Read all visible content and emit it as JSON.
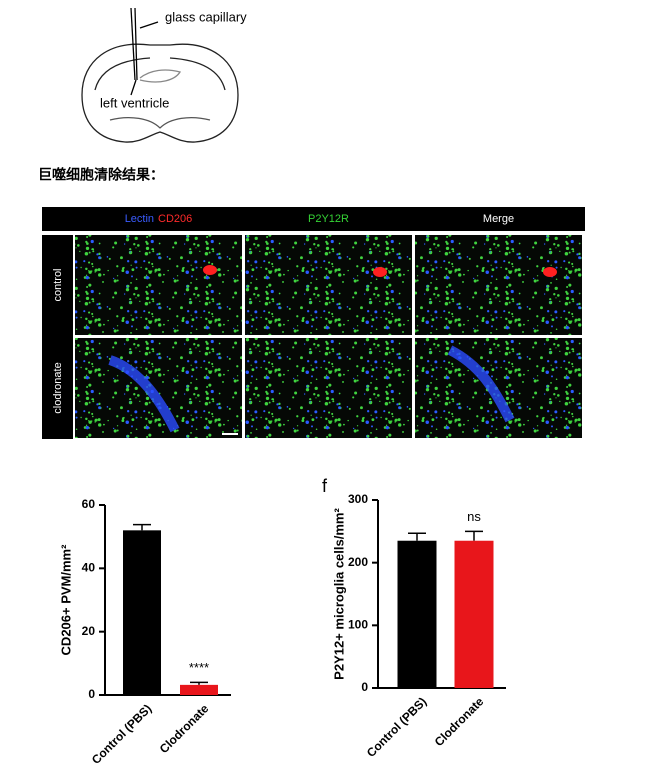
{
  "diagram_labels": {
    "capillary": "glass capillary",
    "ventricle": "left ventricle"
  },
  "heading": "巨噬细胞清除结果：",
  "microscopy": {
    "column_headers": [
      [
        "Lectin",
        "CD206"
      ],
      [
        "P2Y12R"
      ],
      [
        "Merge"
      ]
    ],
    "header_colors": [
      [
        "#3a5cff",
        "#ff2a2a"
      ],
      [
        "#35d335"
      ],
      [
        "#ffffff"
      ]
    ],
    "row_labels": [
      "control",
      "clodronate"
    ]
  },
  "chart_data": [
    {
      "type": "bar",
      "ylabel": "CD206+ PVM/mm²",
      "categories": [
        "Control (PBS)",
        "Clodronate"
      ],
      "values": [
        52,
        3.2
      ],
      "errors": [
        1.8,
        0.8
      ],
      "colors": [
        "#000000",
        "#e8161b"
      ],
      "annotations": [
        {
          "category": "Clodronate",
          "text": "****"
        }
      ],
      "ylim": [
        0,
        60
      ],
      "yticks": [
        0,
        20,
        40,
        60
      ]
    },
    {
      "type": "bar",
      "panel_label": "f",
      "ylabel": "P2Y12+ microglia cells/mm²",
      "categories": [
        "Control (PBS)",
        "Clodronate"
      ],
      "values": [
        235,
        235
      ],
      "errors": [
        12,
        15
      ],
      "colors": [
        "#000000",
        "#e8161b"
      ],
      "annotations": [
        {
          "category": "Clodronate",
          "text": "ns"
        }
      ],
      "ylim": [
        0,
        300
      ],
      "yticks": [
        0,
        100,
        200,
        300
      ]
    }
  ]
}
